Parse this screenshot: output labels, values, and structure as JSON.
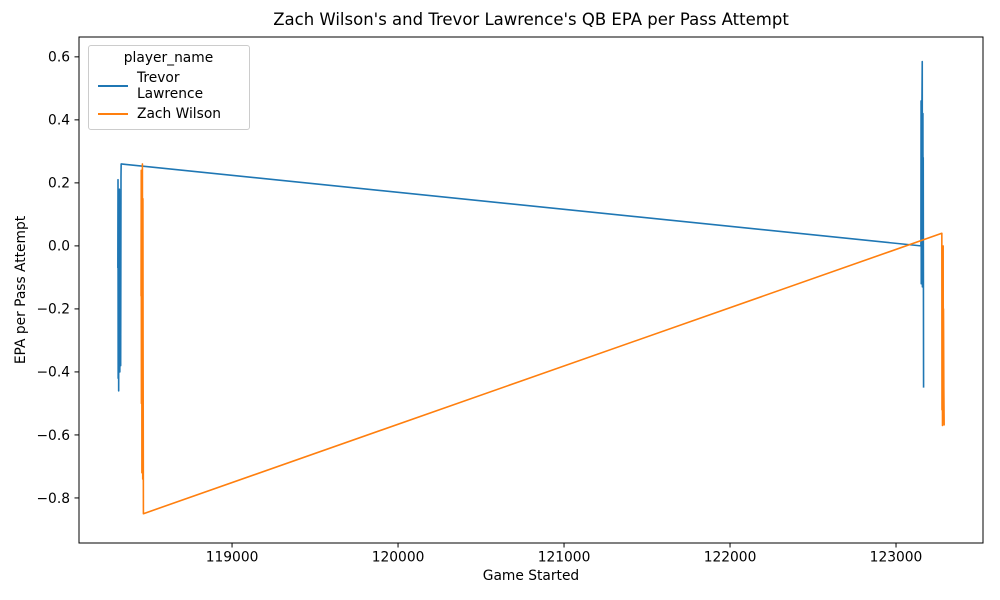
{
  "figure": {
    "title": "Zach Wilson's and Trevor Lawrence's QB EPA per Pass Attempt",
    "xlabel": "Game Started",
    "ylabel": "EPA per Pass Attempt"
  },
  "legend": {
    "title": "player_name",
    "entries": [
      {
        "label": "Trevor Lawrence",
        "color": "#1f77b4"
      },
      {
        "label": "Zach Wilson",
        "color": "#ff7f0e"
      }
    ]
  },
  "chart_data": {
    "type": "line",
    "title": "Zach Wilson's and Trevor Lawrence's QB EPA per Pass Attempt",
    "xlabel": "Game Started",
    "ylabel": "EPA per Pass Attempt",
    "xlim": [
      118078,
      123524
    ],
    "ylim": [
      -0.943,
      0.663
    ],
    "x_ticks": [
      119000,
      120000,
      121000,
      122000,
      123000
    ],
    "y_ticks": [
      -0.8,
      -0.6,
      -0.4,
      -0.2,
      0.0,
      0.2,
      0.4,
      0.6
    ],
    "grid": false,
    "legend_position": "upper left",
    "series": [
      {
        "name": "Trevor Lawrence",
        "color": "#1f77b4",
        "points": [
          [
            118312,
            -0.07
          ],
          [
            118313,
            0.21
          ],
          [
            118314,
            -0.42
          ],
          [
            118316,
            0.1
          ],
          [
            118317,
            -0.46
          ],
          [
            118318,
            0.05
          ],
          [
            118319,
            -0.3
          ],
          [
            118321,
            0.18
          ],
          [
            118322,
            -0.36
          ],
          [
            118323,
            -0.05
          ],
          [
            118324,
            -0.4
          ],
          [
            118326,
            0.12
          ],
          [
            118327,
            -0.28
          ],
          [
            118328,
            0.07
          ],
          [
            118329,
            -0.38
          ],
          [
            118331,
            0.22
          ],
          [
            118332,
            0.26
          ],
          [
            123150,
            0.0
          ],
          [
            123151,
            0.46
          ],
          [
            123152,
            -0.12
          ],
          [
            123154,
            0.35
          ],
          [
            123155,
            -0.08
          ],
          [
            123156,
            0.44
          ],
          [
            123158,
            0.585
          ],
          [
            123159,
            -0.13
          ],
          [
            123160,
            0.3
          ],
          [
            123161,
            -0.05
          ],
          [
            123162,
            0.42
          ],
          [
            123163,
            -0.1
          ],
          [
            123164,
            0.28
          ],
          [
            123166,
            -0.45
          ]
        ]
      },
      {
        "name": "Zach Wilson",
        "color": "#ff7f0e",
        "points": [
          [
            118452,
            -0.16
          ],
          [
            118453,
            0.24
          ],
          [
            118454,
            -0.5
          ],
          [
            118456,
            0.1
          ],
          [
            118457,
            -0.72
          ],
          [
            118458,
            0.05
          ],
          [
            118459,
            -0.6
          ],
          [
            118460,
            0.26
          ],
          [
            118461,
            -0.45
          ],
          [
            118462,
            -0.74
          ],
          [
            118463,
            0.15
          ],
          [
            118464,
            -0.3
          ],
          [
            118466,
            -0.85
          ],
          [
            123276,
            0.04
          ],
          [
            123277,
            -0.52
          ],
          [
            123278,
            -0.05
          ],
          [
            123280,
            -0.57
          ],
          [
            123281,
            -0.15
          ],
          [
            123283,
            -0.48
          ],
          [
            123284,
            0.0
          ],
          [
            123285,
            -0.55
          ],
          [
            123286,
            -0.2
          ],
          [
            123288,
            -0.45
          ],
          [
            123290,
            -0.57
          ]
        ]
      }
    ]
  }
}
